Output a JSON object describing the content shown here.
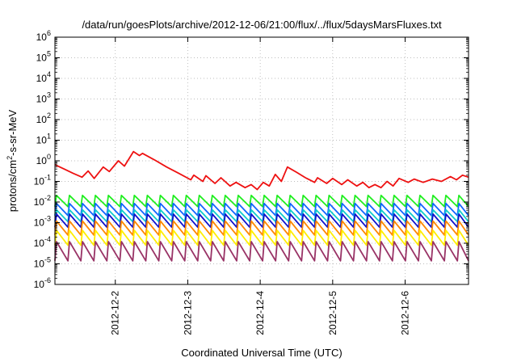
{
  "chart_data": {
    "type": "line",
    "title": "/data/run/goesPlots/archive/2012-12-06/21:00/flux/../flux/5daysMarsFluxes.txt",
    "xlabel": "Coordinated Universal Time (UTC)",
    "ylabel": {
      "before": "protons/cm",
      "sup": "2",
      "after": "-s-sr-MeV"
    },
    "x_ticks": [
      "2012-12-2",
      "2012-12-3",
      "2012-12-4",
      "2012-12-5",
      "2012-12-6"
    ],
    "x_range": [
      "2012-12-01T04:00",
      "2012-12-06T21:00"
    ],
    "y_scale": "log",
    "y_ticks": [
      {
        "base": "10",
        "exp": "-6"
      },
      {
        "base": "10",
        "exp": "-5"
      },
      {
        "base": "10",
        "exp": "-4"
      },
      {
        "base": "10",
        "exp": "-3"
      },
      {
        "base": "10",
        "exp": "-2"
      },
      {
        "base": "10",
        "exp": "-1"
      },
      {
        "base": "10",
        "exp": "0"
      },
      {
        "base": "10",
        "exp": "1"
      },
      {
        "base": "10",
        "exp": "2"
      },
      {
        "base": "10",
        "exp": "3"
      },
      {
        "base": "10",
        "exp": "4"
      },
      {
        "base": "10",
        "exp": "5"
      },
      {
        "base": "10",
        "exp": "6"
      }
    ],
    "ylim": [
      1e-06,
      1000000.0
    ],
    "grid": true,
    "legend": "none",
    "series": [
      {
        "color": "#ee1111",
        "points": [
          [
            "2012-12-01T04:00",
            0.65
          ],
          [
            "2012-12-01T07:00",
            0.4
          ],
          [
            "2012-12-01T10:00",
            0.25
          ],
          [
            "2012-12-01T13:00",
            0.16
          ],
          [
            "2012-12-01T15:00",
            0.32
          ],
          [
            "2012-12-01T17:00",
            0.14
          ],
          [
            "2012-12-01T20:00",
            0.5
          ],
          [
            "2012-12-01T22:00",
            0.3
          ],
          [
            "2012-12-02T01:00",
            1.0
          ],
          [
            "2012-12-02T03:00",
            0.55
          ],
          [
            "2012-12-02T06:00",
            2.8
          ],
          [
            "2012-12-02T08:00",
            1.8
          ],
          [
            "2012-12-02T09:00",
            2.3
          ],
          [
            "2012-12-02T13:00",
            1.1
          ],
          [
            "2012-12-02T17:00",
            0.5
          ],
          [
            "2012-12-02T21:00",
            0.25
          ],
          [
            "2012-12-03T01:00",
            0.12
          ],
          [
            "2012-12-03T02:00",
            0.2
          ],
          [
            "2012-12-03T05:00",
            0.1
          ],
          [
            "2012-12-03T06:00",
            0.19
          ],
          [
            "2012-12-03T09:00",
            0.08
          ],
          [
            "2012-12-03T11:00",
            0.15
          ],
          [
            "2012-12-03T14:00",
            0.06
          ],
          [
            "2012-12-03T16:00",
            0.09
          ],
          [
            "2012-12-03T19:00",
            0.05
          ],
          [
            "2012-12-03T21:00",
            0.07
          ],
          [
            "2012-12-03T23:00",
            0.04
          ],
          [
            "2012-12-04T01:00",
            0.09
          ],
          [
            "2012-12-04T03:00",
            0.06
          ],
          [
            "2012-12-04T05:00",
            0.22
          ],
          [
            "2012-12-04T07:00",
            0.1
          ],
          [
            "2012-12-04T09:00",
            0.5
          ],
          [
            "2012-12-04T12:00",
            0.28
          ],
          [
            "2012-12-04T15:00",
            0.15
          ],
          [
            "2012-12-04T18:00",
            0.09
          ],
          [
            "2012-12-04T19:00",
            0.15
          ],
          [
            "2012-12-04T22:00",
            0.08
          ],
          [
            "2012-12-05T00:00",
            0.14
          ],
          [
            "2012-12-05T03:00",
            0.07
          ],
          [
            "2012-12-05T05:00",
            0.12
          ],
          [
            "2012-12-05T08:00",
            0.06
          ],
          [
            "2012-12-05T10:00",
            0.09
          ],
          [
            "2012-12-05T12:00",
            0.05
          ],
          [
            "2012-12-05T14:00",
            0.07
          ],
          [
            "2012-12-05T16:00",
            0.05
          ],
          [
            "2012-12-05T18:00",
            0.1
          ],
          [
            "2012-12-05T20:00",
            0.06
          ],
          [
            "2012-12-05T22:00",
            0.14
          ],
          [
            "2012-12-06T01:00",
            0.09
          ],
          [
            "2012-12-06T03:00",
            0.13
          ],
          [
            "2012-12-06T06:00",
            0.09
          ],
          [
            "2012-12-06T09:00",
            0.13
          ],
          [
            "2012-12-06T12:00",
            0.1
          ],
          [
            "2012-12-06T15:00",
            0.17
          ],
          [
            "2012-12-06T17:00",
            0.12
          ],
          [
            "2012-12-06T19:00",
            0.2
          ],
          [
            "2012-12-06T21:00",
            0.16
          ]
        ]
      },
      {
        "color": "#22ee22",
        "sawtooth": {
          "high": 0.021,
          "low": 0.006,
          "period_hours": 4.3,
          "start": "2012-12-01T04:00",
          "end": "2012-12-06T21:00"
        }
      },
      {
        "color": "#1166ff",
        "sawtooth": {
          "high": 0.0085,
          "low": 0.0022,
          "period_hours": 4.3,
          "start": "2012-12-01T04:00",
          "end": "2012-12-06T21:00"
        }
      },
      {
        "color": "#11cccc",
        "sawtooth": {
          "high": 0.0042,
          "low": 0.0011,
          "period_hours": 4.3,
          "start": "2012-12-01T04:00",
          "end": "2012-12-06T21:00"
        }
      },
      {
        "color": "#1111cc",
        "sawtooth": {
          "high": 0.0026,
          "low": 0.0006,
          "period_hours": 4.3,
          "start": "2012-12-01T04:00",
          "end": "2012-12-06T21:00"
        }
      },
      {
        "color": "#ff8800",
        "sawtooth": {
          "high": 0.0012,
          "low": 0.00025,
          "period_hours": 4.3,
          "start": "2012-12-01T04:00",
          "end": "2012-12-06T21:00"
        }
      },
      {
        "color": "#ffee00",
        "sawtooth": {
          "high": 0.00042,
          "low": 8e-05,
          "period_hours": 4.3,
          "start": "2012-12-01T04:00",
          "end": "2012-12-06T21:00"
        }
      },
      {
        "color": "#993366",
        "sawtooth": {
          "high": 0.00012,
          "low": 1.4e-05,
          "period_hours": 4.3,
          "start": "2012-12-01T04:00",
          "end": "2012-12-06T21:00"
        }
      }
    ]
  }
}
